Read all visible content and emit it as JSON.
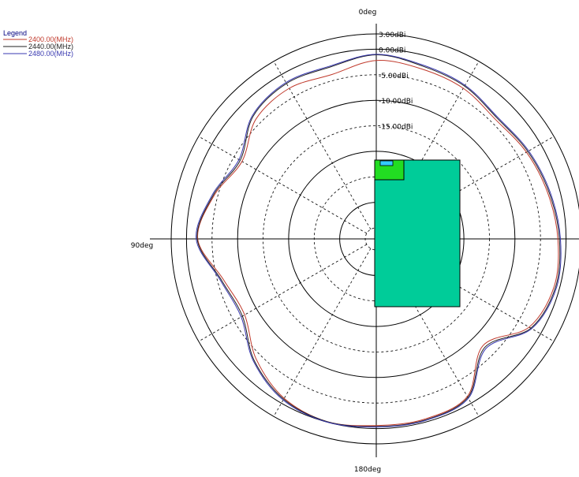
{
  "chart_data": {
    "type": "polar-line",
    "angle_labels": {
      "top": "0deg",
      "left": "90deg",
      "bottom": "180deg"
    },
    "radial_unit": "dBi",
    "radial_ticks": [
      "3.00dBi",
      "0.00dBi",
      "-5.00dBi",
      "-10.00dBi",
      "-15.00dBi"
    ],
    "radial_range": [
      -35,
      3
    ],
    "legend": {
      "title": "Legend",
      "entries": [
        {
          "label": "2400.00(MHz)",
          "color": "#c0392b"
        },
        {
          "label": "2440.00(MHz)",
          "color": "#222222"
        },
        {
          "label": "2480.00(MHz)",
          "color": "#3838b0"
        }
      ]
    },
    "series": [
      {
        "name": "2400.00(MHz)",
        "color": "#c0392b",
        "angle_deg": [
          0,
          15,
          30,
          45,
          60,
          75,
          90,
          105,
          120,
          135,
          150,
          165,
          180,
          195,
          210,
          225,
          240,
          255,
          270,
          285,
          300,
          315,
          330,
          345
        ],
        "gain_dbi": [
          -2.2,
          -3.8,
          -3.1,
          -3.9,
          -6.8,
          -4.3,
          -2.2,
          -6.2,
          -7.4,
          -3.9,
          -1.1,
          -0.1,
          -0.6,
          -0.6,
          -1.5,
          -7.6,
          -2.6,
          -1.1,
          -1.6,
          -2.4,
          -3.2,
          -4.1,
          -3.1,
          -2.7
        ]
      },
      {
        "name": "2440.00(MHz)",
        "color": "#222222",
        "angle_deg": [
          0,
          15,
          30,
          45,
          60,
          75,
          90,
          105,
          120,
          135,
          150,
          165,
          180,
          195,
          210,
          225,
          240,
          255,
          270,
          285,
          300,
          315,
          330,
          345
        ],
        "gain_dbi": [
          -1.1,
          -2.3,
          -2.0,
          -3.1,
          -6.4,
          -4.1,
          -2.1,
          -5.8,
          -6.9,
          -3.4,
          -0.9,
          -0.1,
          -0.4,
          -0.4,
          -1.3,
          -7.1,
          -2.2,
          -0.8,
          -1.3,
          -2.1,
          -2.9,
          -3.7,
          -2.6,
          -2.1
        ]
      },
      {
        "name": "2480.00(MHz)",
        "color": "#3838b0",
        "angle_deg": [
          0,
          15,
          30,
          45,
          60,
          75,
          90,
          105,
          120,
          135,
          150,
          165,
          180,
          195,
          210,
          225,
          240,
          255,
          270,
          285,
          300,
          315,
          330,
          345
        ],
        "gain_dbi": [
          -1.0,
          -2.1,
          -1.8,
          -2.9,
          -6.1,
          -3.9,
          -1.9,
          -5.6,
          -6.6,
          -3.2,
          -0.7,
          0.0,
          -0.3,
          -0.3,
          -1.1,
          -6.8,
          -2.0,
          -0.6,
          -1.1,
          -1.9,
          -2.7,
          -3.5,
          -2.4,
          -1.9
        ]
      }
    ],
    "grid": true,
    "legend_position": "top-left"
  }
}
